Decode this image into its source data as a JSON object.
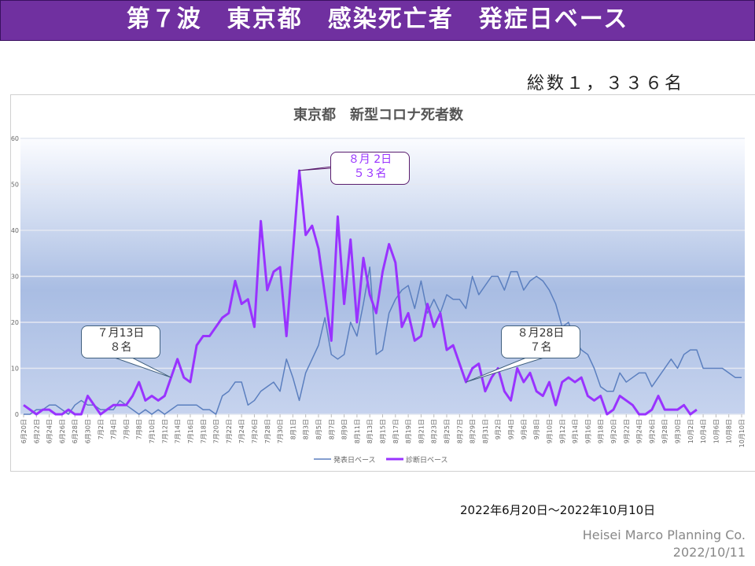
{
  "header": {
    "title": "第７波　東京都　感染死亡者　発症日ベース"
  },
  "total_label": "総数１，３３６名",
  "chart_data": {
    "type": "line",
    "title": "東京都　新型コロナ死者数",
    "xlabel": "",
    "ylabel": "",
    "ylim": [
      0,
      60
    ],
    "yticks": [
      0,
      10,
      20,
      30,
      40,
      50,
      60
    ],
    "grid": true,
    "legend_position": "bottom",
    "x_start": "2022-06-20",
    "x_labels": [
      "6月20日",
      "6月22日",
      "6月24日",
      "6月26日",
      "6月28日",
      "6月30日",
      "7月2日",
      "7月4日",
      "7月6日",
      "7月8日",
      "7月10日",
      "7月12日",
      "7月14日",
      "7月16日",
      "7月18日",
      "7月20日",
      "7月22日",
      "7月24日",
      "7月26日",
      "7月28日",
      "7月30日",
      "8月1日",
      "8月3日",
      "8月5日",
      "8月7日",
      "8月9日",
      "8月11日",
      "8月13日",
      "8月15日",
      "8月17日",
      "8月19日",
      "8月21日",
      "8月23日",
      "8月25日",
      "8月27日",
      "8月29日",
      "8月31日",
      "9月2日",
      "9月4日",
      "9月6日",
      "9月8日",
      "9月10日",
      "9月12日",
      "9月14日",
      "9月16日",
      "9月18日",
      "9月20日",
      "9月22日",
      "9月24日",
      "9月26日",
      "9月28日",
      "9月30日",
      "10月2日",
      "10月4日",
      "10月6日",
      "10月8日",
      "10月10日"
    ],
    "series": [
      {
        "name": "発表日ベース",
        "color": "#5b7fbf",
        "values": [
          0,
          0,
          1,
          1,
          2,
          2,
          1,
          0,
          2,
          3,
          2,
          2,
          1,
          1,
          1,
          3,
          2,
          1,
          0,
          1,
          0,
          1,
          0,
          1,
          2,
          2,
          2,
          2,
          1,
          1,
          0,
          4,
          5,
          7,
          7,
          2,
          3,
          5,
          6,
          7,
          5,
          12,
          8,
          3,
          9,
          12,
          15,
          21,
          13,
          12,
          13,
          20,
          17,
          24,
          32,
          13,
          14,
          22,
          25,
          27,
          28,
          23,
          29,
          22,
          25,
          22,
          26,
          25,
          25,
          23,
          30,
          26,
          28,
          30,
          30,
          27,
          31,
          31,
          27,
          29,
          30,
          29,
          27,
          24,
          19,
          20,
          16,
          14,
          13,
          10,
          6,
          5,
          5,
          9,
          7,
          8,
          9,
          9,
          6,
          8,
          10,
          12,
          10,
          13,
          14,
          14,
          10,
          10,
          10,
          10,
          9,
          8,
          8
        ]
      },
      {
        "name": "診断日ベース",
        "color": "#9933ff",
        "values": [
          2,
          1,
          0,
          1,
          1,
          0,
          0,
          1,
          0,
          0,
          4,
          2,
          0,
          1,
          2,
          2,
          2,
          4,
          7,
          3,
          4,
          3,
          4,
          8,
          12,
          8,
          7,
          15,
          17,
          17,
          19,
          21,
          22,
          29,
          24,
          25,
          19,
          42,
          27,
          31,
          32,
          17,
          35,
          53,
          39,
          41,
          36,
          26,
          16,
          43,
          24,
          38,
          20,
          34,
          26,
          22,
          31,
          37,
          33,
          19,
          22,
          16,
          17,
          24,
          19,
          22,
          14,
          15,
          11,
          7,
          10,
          11,
          5,
          8,
          10,
          5,
          3,
          10,
          7,
          9,
          5,
          4,
          7,
          2,
          7,
          8,
          7,
          8,
          4,
          3,
          4,
          0,
          1,
          4,
          3,
          2,
          0,
          0,
          1,
          4,
          1,
          1,
          1,
          2,
          0,
          1
        ]
      }
    ],
    "annotations": [
      {
        "date": "7月13日",
        "value": 8,
        "line1": "７月13日",
        "line2": "８名"
      },
      {
        "date": "8月2日",
        "value": 53,
        "line1": "８月 2日",
        "line2": "５３名"
      },
      {
        "date": "8月28日",
        "value": 7,
        "line1": "８月28日",
        "line2": "７名"
      }
    ]
  },
  "footer": {
    "range": "2022年6月20日～2022年10月10日",
    "credit": "Heisei Marco Planning Co.",
    "date": "2022/10/11"
  }
}
